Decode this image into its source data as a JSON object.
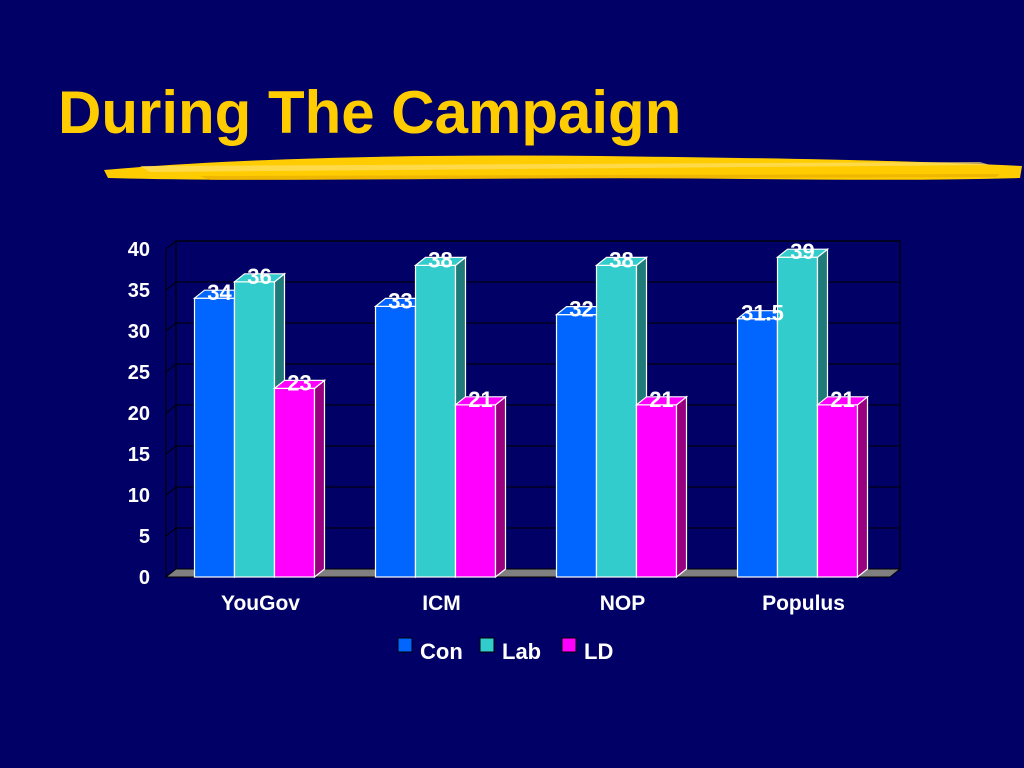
{
  "slide": {
    "title": "During The Campaign",
    "background": "#000066",
    "title_color": "#FFCC00"
  },
  "chart_data": {
    "type": "bar",
    "style": "3d-clustered",
    "categories": [
      "YouGov",
      "ICM",
      "NOP",
      "Populus"
    ],
    "series": [
      {
        "name": "Con",
        "values": [
          34,
          33,
          32,
          31.5
        ],
        "labels": [
          "34",
          "33",
          "32",
          "31.5"
        ],
        "color": "#0066FF",
        "side_color": "#0044AA"
      },
      {
        "name": "Lab",
        "values": [
          36,
          38,
          38,
          39
        ],
        "labels": [
          "36",
          "38",
          "38",
          "39"
        ],
        "color": "#33CCCC",
        "side_color": "#1F7A7A"
      },
      {
        "name": "LD",
        "values": [
          23,
          21,
          21,
          21
        ],
        "labels": [
          "23",
          "21",
          "21",
          "21"
        ],
        "color": "#FF00FF",
        "side_color": "#99007F"
      }
    ],
    "ylim": [
      0,
      40
    ],
    "yticks": [
      0,
      5,
      10,
      15,
      20,
      25,
      30,
      35,
      40
    ],
    "grid": true,
    "legend": "bottom-center",
    "title": "",
    "xlabel": "",
    "ylabel": ""
  }
}
